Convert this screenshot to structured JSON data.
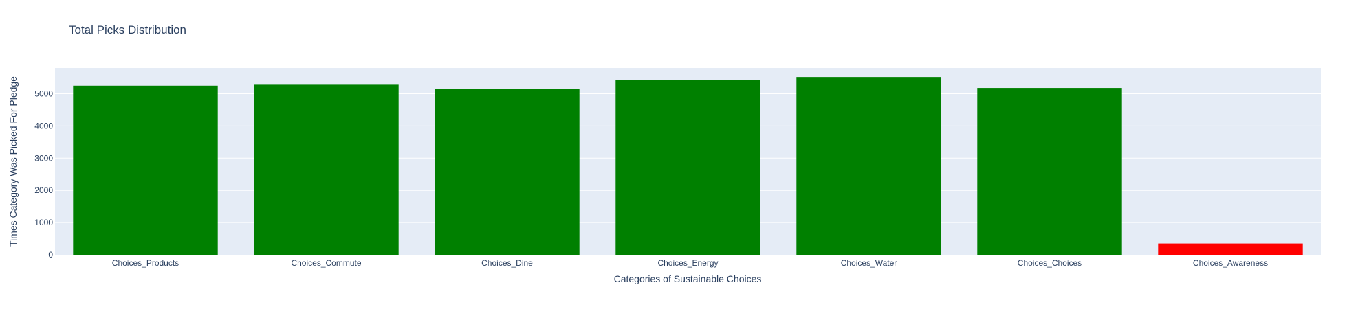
{
  "chart_data": {
    "type": "bar",
    "title": "Total Picks Distribution",
    "xlabel": "Categories of Sustainable Choices",
    "ylabel": "Times Category Was Picked For Pledge",
    "categories": [
      "Choices_Products",
      "Choices_Commute",
      "Choices_Dine",
      "Choices_Energy",
      "Choices_Water",
      "Choices_Choices",
      "Choices_Awareness"
    ],
    "values": [
      5250,
      5280,
      5140,
      5430,
      5520,
      5180,
      350
    ],
    "colors": [
      "#008000",
      "#008000",
      "#008000",
      "#008000",
      "#008000",
      "#008000",
      "#ff0000"
    ],
    "ylim": [
      0,
      5800
    ],
    "yticks": [
      0,
      1000,
      2000,
      3000,
      4000,
      5000
    ],
    "grid": true,
    "plot_background": "#e5ecf6"
  }
}
